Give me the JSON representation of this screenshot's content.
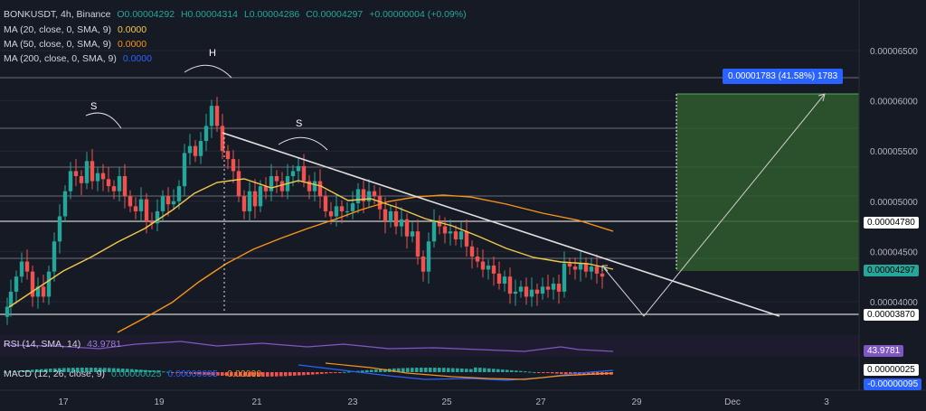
{
  "header": {
    "symbol": "BONKUSDT, 4h, Binance",
    "open": "O0.00004292",
    "high": "H0.00004314",
    "low": "L0.00004286",
    "close": "C0.00004297",
    "change": "+0.00000004 (+0.09%)"
  },
  "ma_lines": [
    {
      "label": "MA (20, close, 0, SMA, 9)",
      "value": "0.0000",
      "color": "#f2c94c"
    },
    {
      "label": "MA (50, close, 0, SMA, 9)",
      "value": "0.0000",
      "color": "#f7931a"
    },
    {
      "label": "MA (200, close, 0, SMA, 9)",
      "value": "0.0000",
      "color": "#2962ff"
    }
  ],
  "annotations": {
    "left_shoulder": "S",
    "head": "H",
    "right_shoulder": "S",
    "target_label": "0.00001783 (41.58%) 1783"
  },
  "price_axis_labels": [
    "0.00006500",
    "0.00006000",
    "0.00005500",
    "0.00005000",
    "0.00004500",
    "0.00004000"
  ],
  "price_tags": {
    "resistance": "0.00004780",
    "current": "0.00004297",
    "support": "0.00003870"
  },
  "rsi": {
    "label": "RSI (14, SMA, 14)",
    "value": "43.9781",
    "color": "#7e57c2"
  },
  "macd": {
    "label": "MACD (12, 26, close, 9)",
    "values": [
      "0.00000025",
      "0.00000095",
      "-0.00000"
    ],
    "tag_pos": "0.00000025",
    "tag_neg": "-0.00000095"
  },
  "x_axis_labels": [
    "17",
    "19",
    "21",
    "23",
    "25",
    "27",
    "29",
    "Dec",
    "3"
  ],
  "colors": {
    "up": "#26a69a",
    "down": "#ef5350",
    "ma20": "#f2c94c",
    "ma50": "#f7931a",
    "trendline": "#e0e0e0",
    "target_zone": "#2e5a2e"
  },
  "chart_data": {
    "type": "candlestick",
    "timeframe": "4h",
    "y_axis_ticks": [
      6.5e-05,
      6e-05,
      5.5e-05,
      5e-05,
      4.5e-05,
      4e-05
    ],
    "y_range": [
      3.65e-05,
      6.95e-05
    ],
    "levels": {
      "resistance": 4.78e-05,
      "current": 4.297e-05,
      "support": 3.87e-05,
      "target": 6.08e-05
    },
    "target_move": {
      "amount": 1.783e-05,
      "percent": 41.58
    }
  }
}
